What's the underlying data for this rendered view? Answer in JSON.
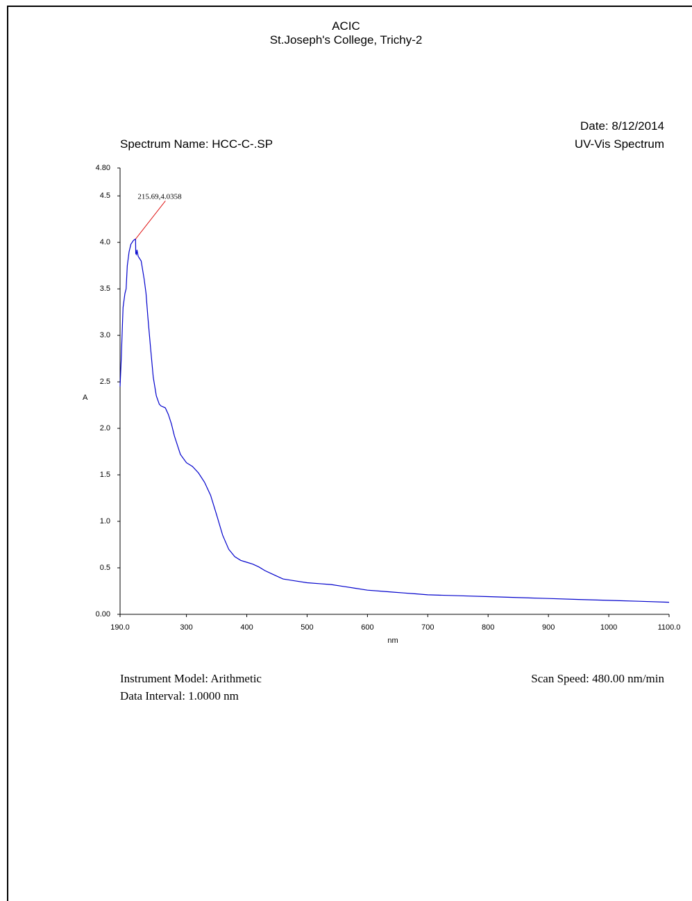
{
  "header": {
    "title": "ACIC",
    "subtitle": "St.Joseph's College, Trichy-2",
    "spectrum_name": "Spectrum Name: HCC-C-.SP",
    "date": "Date: 8/12/2014",
    "spectrum_type": "UV-Vis Spectrum"
  },
  "footer": {
    "instrument_model": "Instrument Model: Arithmetic",
    "data_interval": "Data Interval: 1.0000 nm",
    "scan_speed": "Scan Speed: 480.00 nm/min"
  },
  "colors": {
    "series": "#0000cc",
    "peak_marker": "#dd0000",
    "axis": "#000000"
  },
  "chart_data": {
    "type": "line",
    "xlabel": "nm",
    "ylabel": "A",
    "xlim": [
      190.0,
      1100.0
    ],
    "ylim": [
      0.0,
      4.8
    ],
    "x_tick_labels": [
      "190.0",
      "300",
      "400",
      "500",
      "600",
      "700",
      "800",
      "900",
      "1000",
      "1100.0"
    ],
    "x_tick_values": [
      190,
      300,
      400,
      500,
      600,
      700,
      800,
      900,
      1000,
      1100
    ],
    "y_tick_labels": [
      "0.00",
      "0.5",
      "1.0",
      "1.5",
      "2.0",
      "2.5",
      "3.0",
      "3.5",
      "4.0",
      "4.5",
      "4.80"
    ],
    "y_tick_values": [
      0.0,
      0.5,
      1.0,
      1.5,
      2.0,
      2.5,
      3.0,
      3.5,
      4.0,
      4.5,
      4.8
    ],
    "grid": false,
    "series": [
      {
        "x": [
          190,
          192,
          195,
          198,
          200,
          202,
          205,
          208,
          210,
          212,
          214,
          215.69,
          216,
          217,
          218,
          220,
          225,
          230,
          233,
          236,
          240,
          245,
          250,
          255,
          258,
          262,
          265,
          270,
          275,
          280,
          290,
          300,
          310,
          320,
          330,
          340,
          350,
          360,
          370,
          380,
          390,
          400,
          410,
          420,
          430,
          440,
          450,
          460,
          480,
          500,
          520,
          540,
          560,
          580,
          600,
          620,
          640,
          660,
          680,
          700,
          750,
          800,
          850,
          900,
          950,
          1000,
          1050,
          1100
        ],
        "y": [
          2.45,
          2.75,
          3.3,
          3.45,
          3.5,
          3.75,
          3.9,
          3.98,
          4.0,
          4.02,
          4.03,
          4.0358,
          3.88,
          3.87,
          3.92,
          3.85,
          3.8,
          3.6,
          3.45,
          3.2,
          2.9,
          2.55,
          2.35,
          2.26,
          2.24,
          2.23,
          2.22,
          2.15,
          2.05,
          1.92,
          1.72,
          1.63,
          1.59,
          1.52,
          1.42,
          1.28,
          1.07,
          0.85,
          0.7,
          0.62,
          0.58,
          0.56,
          0.54,
          0.51,
          0.47,
          0.44,
          0.41,
          0.38,
          0.36,
          0.34,
          0.33,
          0.32,
          0.3,
          0.28,
          0.26,
          0.25,
          0.24,
          0.23,
          0.22,
          0.21,
          0.2,
          0.19,
          0.18,
          0.17,
          0.16,
          0.15,
          0.14,
          0.13
        ]
      }
    ],
    "annotations": [
      {
        "text": "215.69,4.0358",
        "x": 215.69,
        "y": 4.0358
      }
    ]
  }
}
